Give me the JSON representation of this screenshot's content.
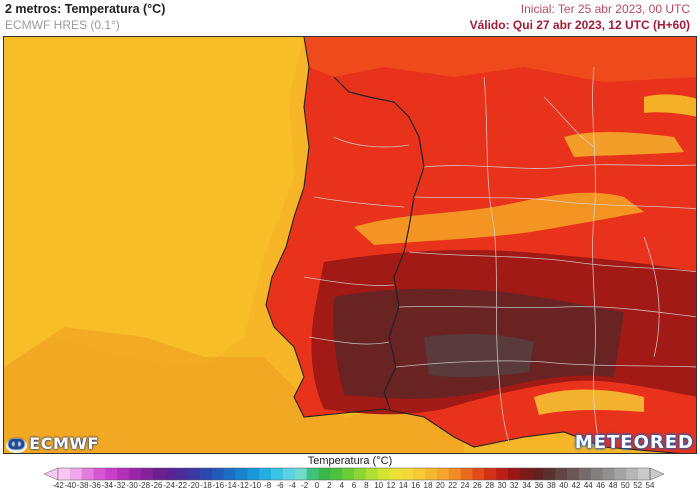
{
  "header": {
    "title": "2 metros: Temperatura (°C)",
    "model": "ECMWF HRES (0.1°)",
    "initial": "Inicial: Ter 25 abr 2023, 00 UTC",
    "valid": "Válido: Qui 27 abr 2023, 12 UTC (H+60)"
  },
  "logos": {
    "left": "ECMWF",
    "right": "METEORED"
  },
  "map": {
    "region": "Iberian Peninsula",
    "ocean_color": "#f6b627",
    "land_colors": [
      "#e9321b",
      "#c91e14",
      "#8a1a18",
      "#5e3a3a",
      "#f6d02a"
    ],
    "border_color": "#222222",
    "region_line_color": "#d8d8d8"
  },
  "colorbar": {
    "label": "Temperatura (°C)",
    "ticks": [
      "-42",
      "-40",
      "-38",
      "-36",
      "-34",
      "-32",
      "-30",
      "-28",
      "-26",
      "-24",
      "-22",
      "-20",
      "-18",
      "-16",
      "-14",
      "-12",
      "-10",
      "-8",
      "-6",
      "-4",
      "-2",
      "0",
      "2",
      "4",
      "6",
      "8",
      "10",
      "12",
      "14",
      "16",
      "18",
      "20",
      "22",
      "24",
      "26",
      "28",
      "30",
      "32",
      "34",
      "36",
      "38",
      "40",
      "42",
      "44",
      "46",
      "48",
      "50",
      "52",
      "54"
    ],
    "colors": [
      "#f7c8f2",
      "#f0a6ea",
      "#e47ce0",
      "#d855d6",
      "#c93fc9",
      "#b22fb8",
      "#9b25a8",
      "#85229b",
      "#6c1f8e",
      "#5b2494",
      "#4a2d9a",
      "#3b39a4",
      "#2c47ad",
      "#2259b8",
      "#1b6ec4",
      "#1783cf",
      "#1898d9",
      "#22aee0",
      "#3bc3e4",
      "#5bd3e2",
      "#6fdccb",
      "#3fc37a",
      "#38b84a",
      "#4cc23e",
      "#6bcc37",
      "#8ed533",
      "#b2dd31",
      "#d3e331",
      "#ece236",
      "#f5d93a",
      "#f6c935",
      "#f5b92f",
      "#f4a52b",
      "#f18b25",
      "#ea6a1e",
      "#e14b19",
      "#d43016",
      "#bd1e15",
      "#9c1617",
      "#7d1919",
      "#652121",
      "#5a3030",
      "#614444",
      "#6b5656",
      "#766a6a",
      "#837f7f",
      "#929090",
      "#a3a3a3",
      "#b6b6b6",
      "#cacaca"
    ]
  }
}
